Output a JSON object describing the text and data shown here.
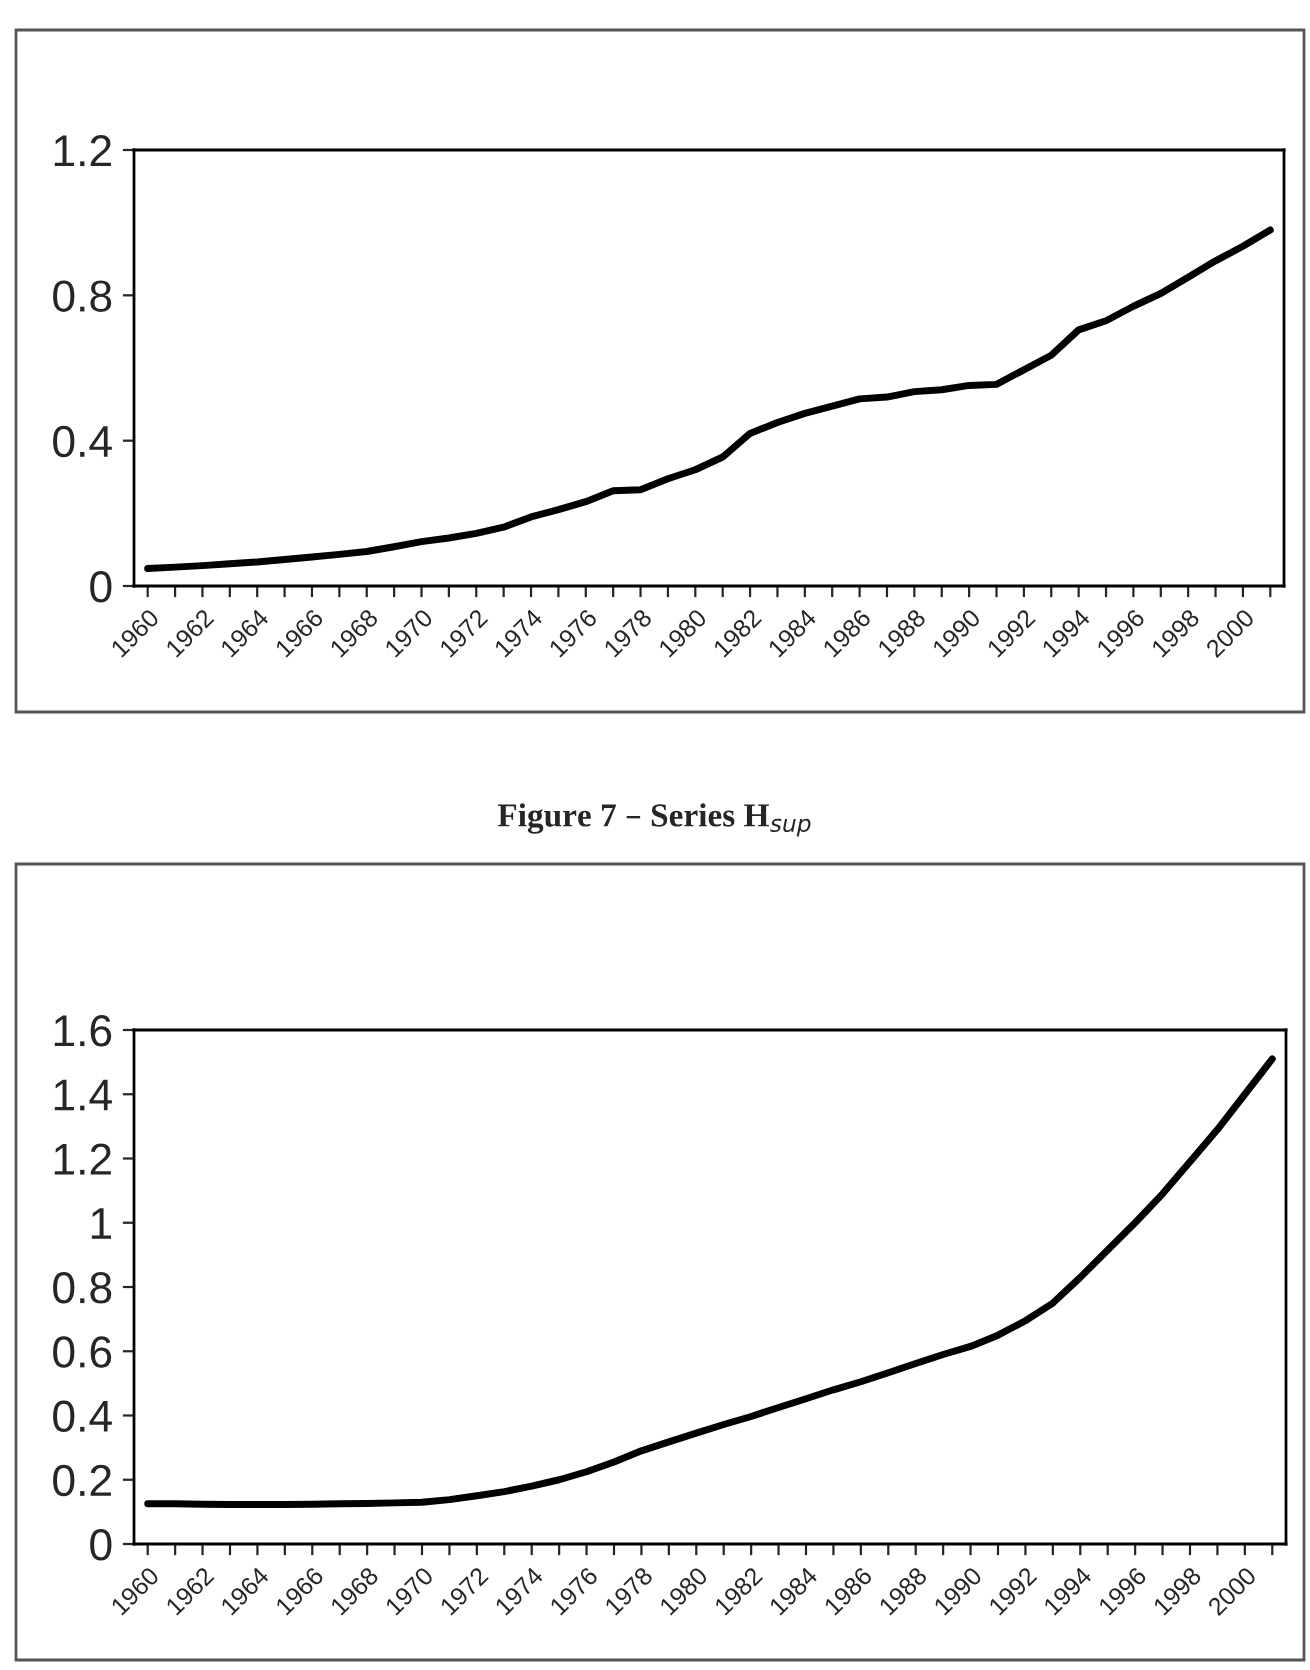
{
  "chart_data": [
    {
      "type": "line",
      "categories": [
        "1960",
        null,
        "1962",
        null,
        "1964",
        null,
        "1966",
        null,
        "1968",
        null,
        "1970",
        null,
        "1972",
        null,
        "1974",
        null,
        "1976",
        null,
        "1978",
        null,
        "1980",
        null,
        "1982",
        null,
        "1984",
        null,
        "1986",
        null,
        "1988",
        null,
        "1990",
        null,
        "1992",
        null,
        "1994",
        null,
        "1996",
        null,
        "1998",
        null,
        "2000",
        null
      ],
      "series": [
        {
          "color": "#000000",
          "values": [
            0.048,
            0.052,
            0.056,
            0.061,
            0.066,
            0.073,
            0.08,
            0.087,
            0.095,
            0.108,
            0.122,
            0.132,
            0.145,
            0.162,
            0.19,
            0.21,
            0.232,
            0.262,
            0.265,
            0.295,
            0.32,
            0.355,
            0.42,
            0.45,
            0.475,
            0.495,
            0.515,
            0.52,
            0.535,
            0.54,
            0.552,
            0.555,
            0.595,
            0.635,
            0.705,
            0.73,
            0.77,
            0.805,
            0.85,
            0.895,
            0.935,
            0.98
          ]
        }
      ],
      "ylim": [
        0,
        1.2
      ],
      "yticks": [
        0,
        0.4,
        0.8,
        1.2
      ],
      "grid": false,
      "legend": false,
      "marker": "none",
      "line_style": "solid"
    },
    {
      "type": "line",
      "title": "Figure 7 – Series H$_{sup}$",
      "categories": [
        "1960",
        null,
        "1962",
        null,
        "1964",
        null,
        "1966",
        null,
        "1968",
        null,
        "1970",
        null,
        "1972",
        null,
        "1974",
        null,
        "1976",
        null,
        "1978",
        null,
        "1980",
        null,
        "1982",
        null,
        "1984",
        null,
        "1986",
        null,
        "1988",
        null,
        "1990",
        null,
        "1992",
        null,
        "1994",
        null,
        "1996",
        null,
        "1998",
        null,
        "2000",
        null
      ],
      "series": [
        {
          "color": "#000000",
          "values": [
            0.125,
            0.125,
            0.124,
            0.123,
            0.123,
            0.123,
            0.124,
            0.125,
            0.126,
            0.128,
            0.13,
            0.138,
            0.15,
            0.163,
            0.18,
            0.2,
            0.225,
            0.255,
            0.29,
            0.318,
            0.345,
            0.372,
            0.397,
            0.425,
            0.452,
            0.48,
            0.505,
            0.533,
            0.562,
            0.59,
            0.615,
            0.65,
            0.695,
            0.75,
            0.83,
            0.915,
            1.0,
            1.09,
            1.19,
            1.29,
            1.4,
            1.51
          ]
        }
      ],
      "ylim": [
        0,
        1.6
      ],
      "yticks": [
        0,
        0.2,
        0.4,
        0.6,
        0.8,
        1,
        1.2,
        1.4,
        1.6
      ],
      "grid": false,
      "legend": false,
      "marker": "none",
      "line_style": "solid"
    }
  ]
}
